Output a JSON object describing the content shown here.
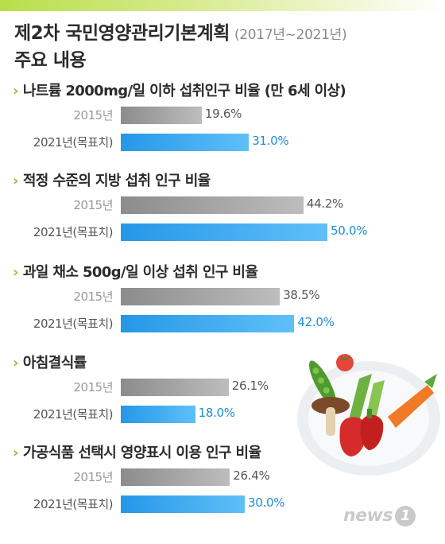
{
  "header": {
    "title": "제2차 국민영양관리기본계획",
    "period": "(2017년~2021년)",
    "subtitle": "주요 내용"
  },
  "colors": {
    "accent_green": "#8cc63f",
    "bar_2015": "#a6a6a6",
    "bar_target": "#2597e8",
    "value_target_text": "#1c8fd8"
  },
  "chart_data": {
    "type": "bar",
    "orientation": "horizontal",
    "unit": "%",
    "series_labels": [
      "2015년",
      "2021년(목표치)"
    ],
    "xlim": [
      0,
      60
    ],
    "grid": false,
    "groups": [
      {
        "title": "나트륨 2000mg/일 이하 섭취인구 비율 (만 6세 이상)",
        "values": [
          19.6,
          31.0
        ],
        "labels": [
          "19.6%",
          "31.0%"
        ]
      },
      {
        "title": "적정 수준의 지방 섭취 인구 비율",
        "values": [
          44.2,
          50.0
        ],
        "labels": [
          "44.2%",
          "50.0%"
        ]
      },
      {
        "title": "과일 채소 500g/일 이상 섭취 인구 비율",
        "values": [
          38.5,
          42.0
        ],
        "labels": [
          "38.5%",
          "42.0%"
        ]
      },
      {
        "title": "아침결식률",
        "values": [
          26.1,
          18.0
        ],
        "labels": [
          "26.1%",
          "18.0%"
        ]
      },
      {
        "title": "가공식품 선택시 영양표시 이용 인구 비율",
        "values": [
          26.4,
          30.0
        ],
        "labels": [
          "26.4%",
          "30.0%"
        ]
      }
    ]
  },
  "logo": {
    "text": "news",
    "mark": "1"
  },
  "icons": {
    "section_marker": "chevron-right-icon",
    "illustration": "vegetable-plate-illustration"
  }
}
